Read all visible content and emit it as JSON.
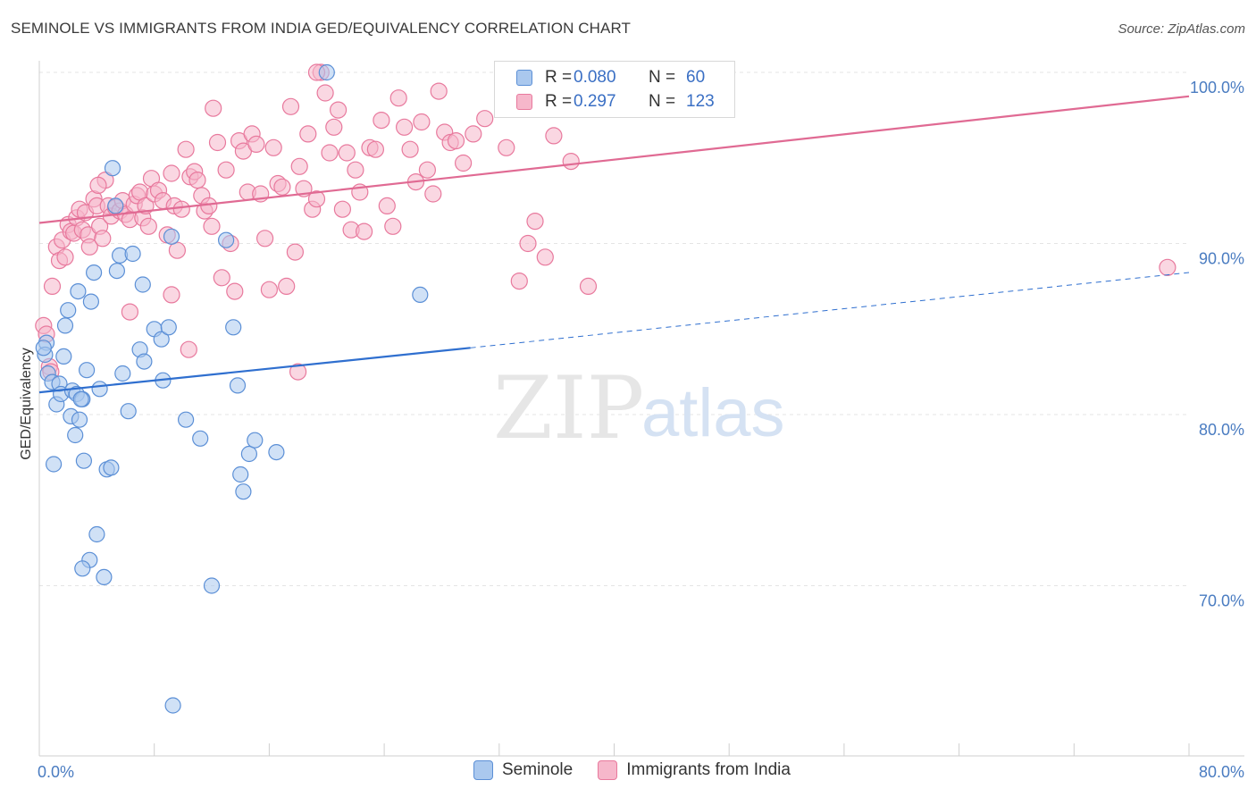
{
  "title": "SEMINOLE VS IMMIGRANTS FROM INDIA GED/EQUIVALENCY CORRELATION CHART",
  "source": "Source: ZipAtlas.com",
  "watermark": {
    "zip": "ZIP",
    "atlas": "atlas"
  },
  "legend": {
    "rows": [
      {
        "r_label": "R =",
        "r_value": "0.080",
        "n_label": "N =",
        "n_value": "60"
      },
      {
        "r_label": "R =",
        "r_value": "0.297",
        "n_label": "N =",
        "n_value": "123"
      }
    ]
  },
  "bottom_legend": {
    "seminole": "Seminole",
    "india": "Immigrants from India"
  },
  "colors": {
    "seminole_fill": "#aac8ee",
    "seminole_stroke": "#5b8fd6",
    "seminole_line": "#2f6fcf",
    "india_fill": "#f6b7cb",
    "india_stroke": "#e8799d",
    "india_line": "#e06a93",
    "tick": "#4a7cc1",
    "grid": "#e4e4e4"
  },
  "chart_data": {
    "type": "scatter",
    "ylabel": "GED/Equivalency",
    "xlim": [
      0,
      80
    ],
    "ylim": [
      62,
      101
    ],
    "x_tick_labels": [
      {
        "v": 0,
        "label": "0.0%"
      },
      {
        "v": 80,
        "label": "80.0%"
      }
    ],
    "y_tick_labels": [
      {
        "v": 70,
        "label": "70.0%"
      },
      {
        "v": 80,
        "label": "80.0%"
      },
      {
        "v": 90,
        "label": "90.0%"
      },
      {
        "v": 100,
        "label": "100.0%"
      }
    ],
    "series": [
      {
        "name": "Seminole",
        "r": 0.08,
        "n": 60,
        "trend": {
          "x0": 0,
          "y0": 81.3,
          "x1": 30,
          "y1": 83.9,
          "dash_to_x": 80,
          "dash_to_y": 88.3
        },
        "points": [
          [
            0.5,
            84.2
          ],
          [
            0.4,
            83.5
          ],
          [
            0.6,
            82.4
          ],
          [
            0.9,
            81.9
          ],
          [
            1.2,
            80.6
          ],
          [
            1.4,
            81.8
          ],
          [
            1.5,
            81.2
          ],
          [
            1.7,
            83.4
          ],
          [
            1.8,
            85.2
          ],
          [
            2.0,
            86.1
          ],
          [
            2.2,
            79.9
          ],
          [
            2.3,
            81.4
          ],
          [
            2.5,
            78.8
          ],
          [
            2.6,
            81.2
          ],
          [
            2.7,
            87.2
          ],
          [
            2.8,
            79.7
          ],
          [
            3.0,
            80.9
          ],
          [
            3.1,
            77.3
          ],
          [
            3.3,
            82.6
          ],
          [
            3.5,
            71.5
          ],
          [
            3.0,
            71.0
          ],
          [
            3.6,
            86.6
          ],
          [
            3.8,
            88.3
          ],
          [
            4.0,
            73.0
          ],
          [
            4.2,
            81.5
          ],
          [
            4.5,
            70.5
          ],
          [
            4.7,
            76.8
          ],
          [
            5.0,
            76.9
          ],
          [
            5.1,
            94.4
          ],
          [
            5.3,
            92.2
          ],
          [
            5.4,
            88.4
          ],
          [
            5.6,
            89.3
          ],
          [
            5.8,
            82.4
          ],
          [
            6.2,
            80.2
          ],
          [
            6.5,
            89.4
          ],
          [
            7.0,
            83.8
          ],
          [
            7.2,
            87.6
          ],
          [
            7.3,
            83.1
          ],
          [
            8.0,
            85.0
          ],
          [
            8.5,
            84.4
          ],
          [
            8.6,
            82.0
          ],
          [
            9.0,
            85.1
          ],
          [
            9.2,
            90.4
          ],
          [
            10.2,
            79.7
          ],
          [
            11.2,
            78.6
          ],
          [
            12.0,
            70.0
          ],
          [
            13.0,
            90.2
          ],
          [
            13.5,
            85.1
          ],
          [
            13.8,
            81.7
          ],
          [
            14.0,
            76.5
          ],
          [
            14.2,
            75.5
          ],
          [
            14.6,
            77.7
          ],
          [
            15.0,
            78.5
          ],
          [
            16.5,
            77.8
          ],
          [
            20.0,
            100.0
          ],
          [
            26.5,
            87.0
          ],
          [
            9.3,
            63.0
          ],
          [
            1.0,
            77.1
          ],
          [
            2.9,
            80.9
          ],
          [
            0.3,
            83.9
          ]
        ]
      },
      {
        "name": "Immigrants from India",
        "r": 0.297,
        "n": 123,
        "trend": {
          "x0": 0,
          "y0": 91.2,
          "x1": 80,
          "y1": 98.6
        },
        "points": [
          [
            0.3,
            85.2
          ],
          [
            0.5,
            84.7
          ],
          [
            0.7,
            82.8
          ],
          [
            0.9,
            87.5
          ],
          [
            1.2,
            89.8
          ],
          [
            1.4,
            89.0
          ],
          [
            1.6,
            90.2
          ],
          [
            1.8,
            89.2
          ],
          [
            2.0,
            91.1
          ],
          [
            2.2,
            90.7
          ],
          [
            2.4,
            90.6
          ],
          [
            2.6,
            91.5
          ],
          [
            2.8,
            92.0
          ],
          [
            3.0,
            90.8
          ],
          [
            3.2,
            91.8
          ],
          [
            3.4,
            90.5
          ],
          [
            3.5,
            89.8
          ],
          [
            3.8,
            92.6
          ],
          [
            4.0,
            92.2
          ],
          [
            4.2,
            91.0
          ],
          [
            4.4,
            90.3
          ],
          [
            4.6,
            93.7
          ],
          [
            4.8,
            92.2
          ],
          [
            5.0,
            91.6
          ],
          [
            5.3,
            92.1
          ],
          [
            5.6,
            91.9
          ],
          [
            5.8,
            92.5
          ],
          [
            6.0,
            91.7
          ],
          [
            6.3,
            91.4
          ],
          [
            6.6,
            92.3
          ],
          [
            6.8,
            92.8
          ],
          [
            7.0,
            93.0
          ],
          [
            7.2,
            91.5
          ],
          [
            7.4,
            92.2
          ],
          [
            7.6,
            91.0
          ],
          [
            7.8,
            93.8
          ],
          [
            8.0,
            92.9
          ],
          [
            8.3,
            93.1
          ],
          [
            8.6,
            92.5
          ],
          [
            8.9,
            90.5
          ],
          [
            9.2,
            94.1
          ],
          [
            9.4,
            92.2
          ],
          [
            9.6,
            89.6
          ],
          [
            9.9,
            92.0
          ],
          [
            10.2,
            95.5
          ],
          [
            10.5,
            93.9
          ],
          [
            10.8,
            94.2
          ],
          [
            11.0,
            93.7
          ],
          [
            11.3,
            92.8
          ],
          [
            11.5,
            91.9
          ],
          [
            11.8,
            92.2
          ],
          [
            12.1,
            97.9
          ],
          [
            12.4,
            95.9
          ],
          [
            12.7,
            88.0
          ],
          [
            13.0,
            94.3
          ],
          [
            13.3,
            90.0
          ],
          [
            13.6,
            87.2
          ],
          [
            13.9,
            96.0
          ],
          [
            14.2,
            95.4
          ],
          [
            14.5,
            93.0
          ],
          [
            14.8,
            96.4
          ],
          [
            15.1,
            95.8
          ],
          [
            15.4,
            92.9
          ],
          [
            15.7,
            90.3
          ],
          [
            16.0,
            87.3
          ],
          [
            16.3,
            95.6
          ],
          [
            16.6,
            93.5
          ],
          [
            16.9,
            93.3
          ],
          [
            17.2,
            87.5
          ],
          [
            17.5,
            98.0
          ],
          [
            17.8,
            89.5
          ],
          [
            18.1,
            94.5
          ],
          [
            18.4,
            93.2
          ],
          [
            18.7,
            96.4
          ],
          [
            19.0,
            92.0
          ],
          [
            19.3,
            92.6
          ],
          [
            19.6,
            100.0
          ],
          [
            19.9,
            98.8
          ],
          [
            20.2,
            95.3
          ],
          [
            20.5,
            96.8
          ],
          [
            20.8,
            97.8
          ],
          [
            21.1,
            92.0
          ],
          [
            21.4,
            95.3
          ],
          [
            21.7,
            90.8
          ],
          [
            22.0,
            94.3
          ],
          [
            22.3,
            93.0
          ],
          [
            22.6,
            90.7
          ],
          [
            23.0,
            95.6
          ],
          [
            23.4,
            95.5
          ],
          [
            23.8,
            97.2
          ],
          [
            24.2,
            92.2
          ],
          [
            24.6,
            91.0
          ],
          [
            25.0,
            98.5
          ],
          [
            25.4,
            96.8
          ],
          [
            25.8,
            95.5
          ],
          [
            26.2,
            93.6
          ],
          [
            26.6,
            97.1
          ],
          [
            27.0,
            94.3
          ],
          [
            27.4,
            92.9
          ],
          [
            27.8,
            98.9
          ],
          [
            28.2,
            96.5
          ],
          [
            28.6,
            95.9
          ],
          [
            29.0,
            96.0
          ],
          [
            30.2,
            96.4
          ],
          [
            31.0,
            97.3
          ],
          [
            32.5,
            95.6
          ],
          [
            33.4,
            87.8
          ],
          [
            34.0,
            90.0
          ],
          [
            35.2,
            89.2
          ],
          [
            35.8,
            96.3
          ],
          [
            37.0,
            94.8
          ],
          [
            38.2,
            87.5
          ],
          [
            78.5,
            88.6
          ],
          [
            34.5,
            91.3
          ],
          [
            29.5,
            94.7
          ],
          [
            18.0,
            82.5
          ],
          [
            10.4,
            83.8
          ],
          [
            6.3,
            86.0
          ],
          [
            9.2,
            87.0
          ],
          [
            12.0,
            91.0
          ],
          [
            0.8,
            82.5
          ],
          [
            19.3,
            100.0
          ],
          [
            4.1,
            93.4
          ]
        ]
      }
    ]
  }
}
